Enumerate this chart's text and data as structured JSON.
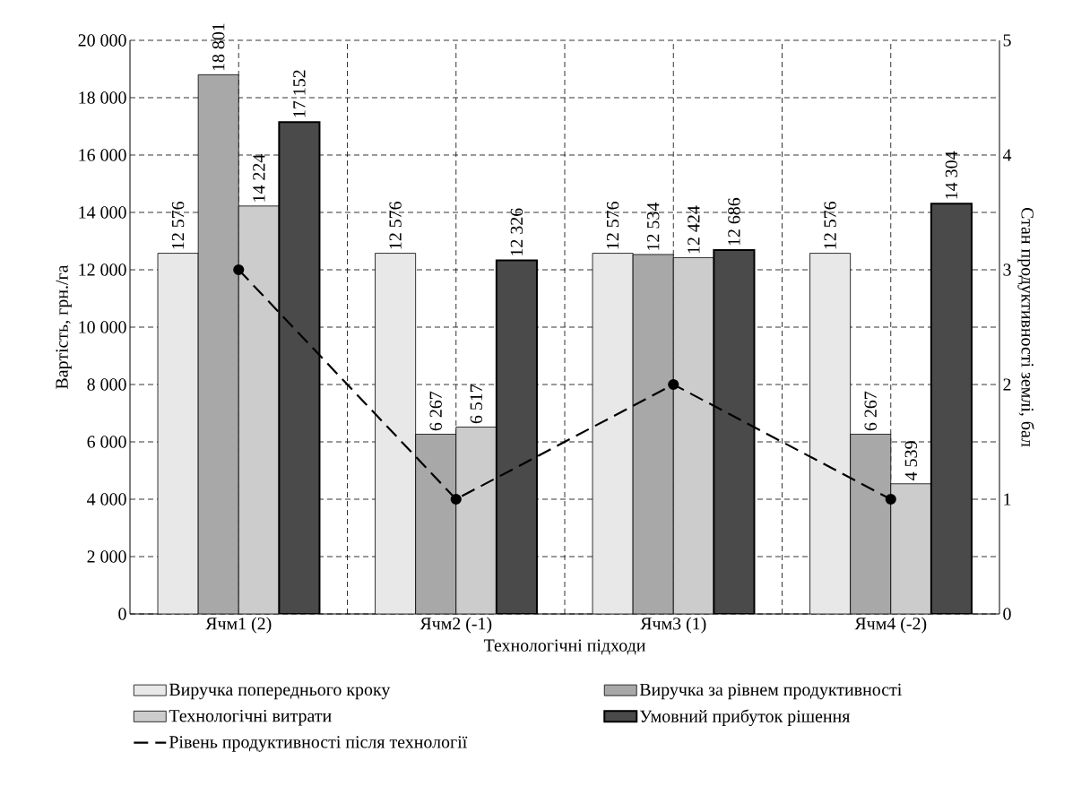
{
  "chart_data": {
    "type": "bar",
    "xlabel": "Технологічні підходи",
    "ylabel": "Вартість, грн./га",
    "y2label": "Стан продуктивності землі, бал",
    "categories": [
      "Ячм1 (2)",
      "Ячм2 (-1)",
      "Ячм3 (1)",
      "Ячм4 (-2)"
    ],
    "series": [
      {
        "name": "Виручка попереднього кроку",
        "color": "#e8e8e8",
        "values": [
          12576,
          12576,
          12576,
          12576
        ],
        "value_labels": [
          "12 576",
          "12 576",
          "12 576",
          "12 576"
        ]
      },
      {
        "name": "Виручка за рівнем продуктивності",
        "color": "#a8a8a8",
        "values": [
          18801,
          6267,
          12534,
          6267
        ],
        "value_labels": [
          "18 801",
          "6 267",
          "12 534",
          "6 267"
        ]
      },
      {
        "name": "Технологічні витрати",
        "color": "#cccccc",
        "values": [
          14224,
          6517,
          12424,
          4539
        ],
        "value_labels": [
          "14 224",
          "6 517",
          "12 424",
          "4 539"
        ]
      },
      {
        "name": "Умовний прибуток рішення",
        "color": "#4a4a4a",
        "values": [
          17152,
          12326,
          12686,
          14304
        ],
        "value_labels": [
          "17 152",
          "12 326",
          "12 686",
          "14 304"
        ]
      },
      {
        "name": "Рівень продуктивності після технології",
        "type": "line",
        "axis": "y2",
        "color": "#000000",
        "values": [
          3,
          1,
          2,
          1
        ],
        "marker": "circle",
        "line_style": "dashed"
      }
    ],
    "ylim": [
      0,
      20000
    ],
    "yticks": [
      0,
      {
        "value": 2000,
        "label": "2 000"
      },
      {
        "value": 4000,
        "label": "4 000"
      },
      {
        "value": 6000,
        "label": "6 000"
      },
      {
        "value": 8000,
        "label": "8 000"
      },
      {
        "value": 10000,
        "label": "10 000"
      },
      {
        "value": 12000,
        "label": "12 000"
      },
      {
        "value": 14000,
        "label": "14 000"
      },
      {
        "value": 16000,
        "label": "16 000"
      },
      {
        "value": 18000,
        "label": "18 000"
      },
      {
        "value": 20000,
        "label": "20 000"
      }
    ],
    "y2lim": [
      0,
      5
    ],
    "y2ticks": [
      0,
      1,
      2,
      3,
      4,
      5
    ],
    "grid": true,
    "legend": "bottom"
  }
}
